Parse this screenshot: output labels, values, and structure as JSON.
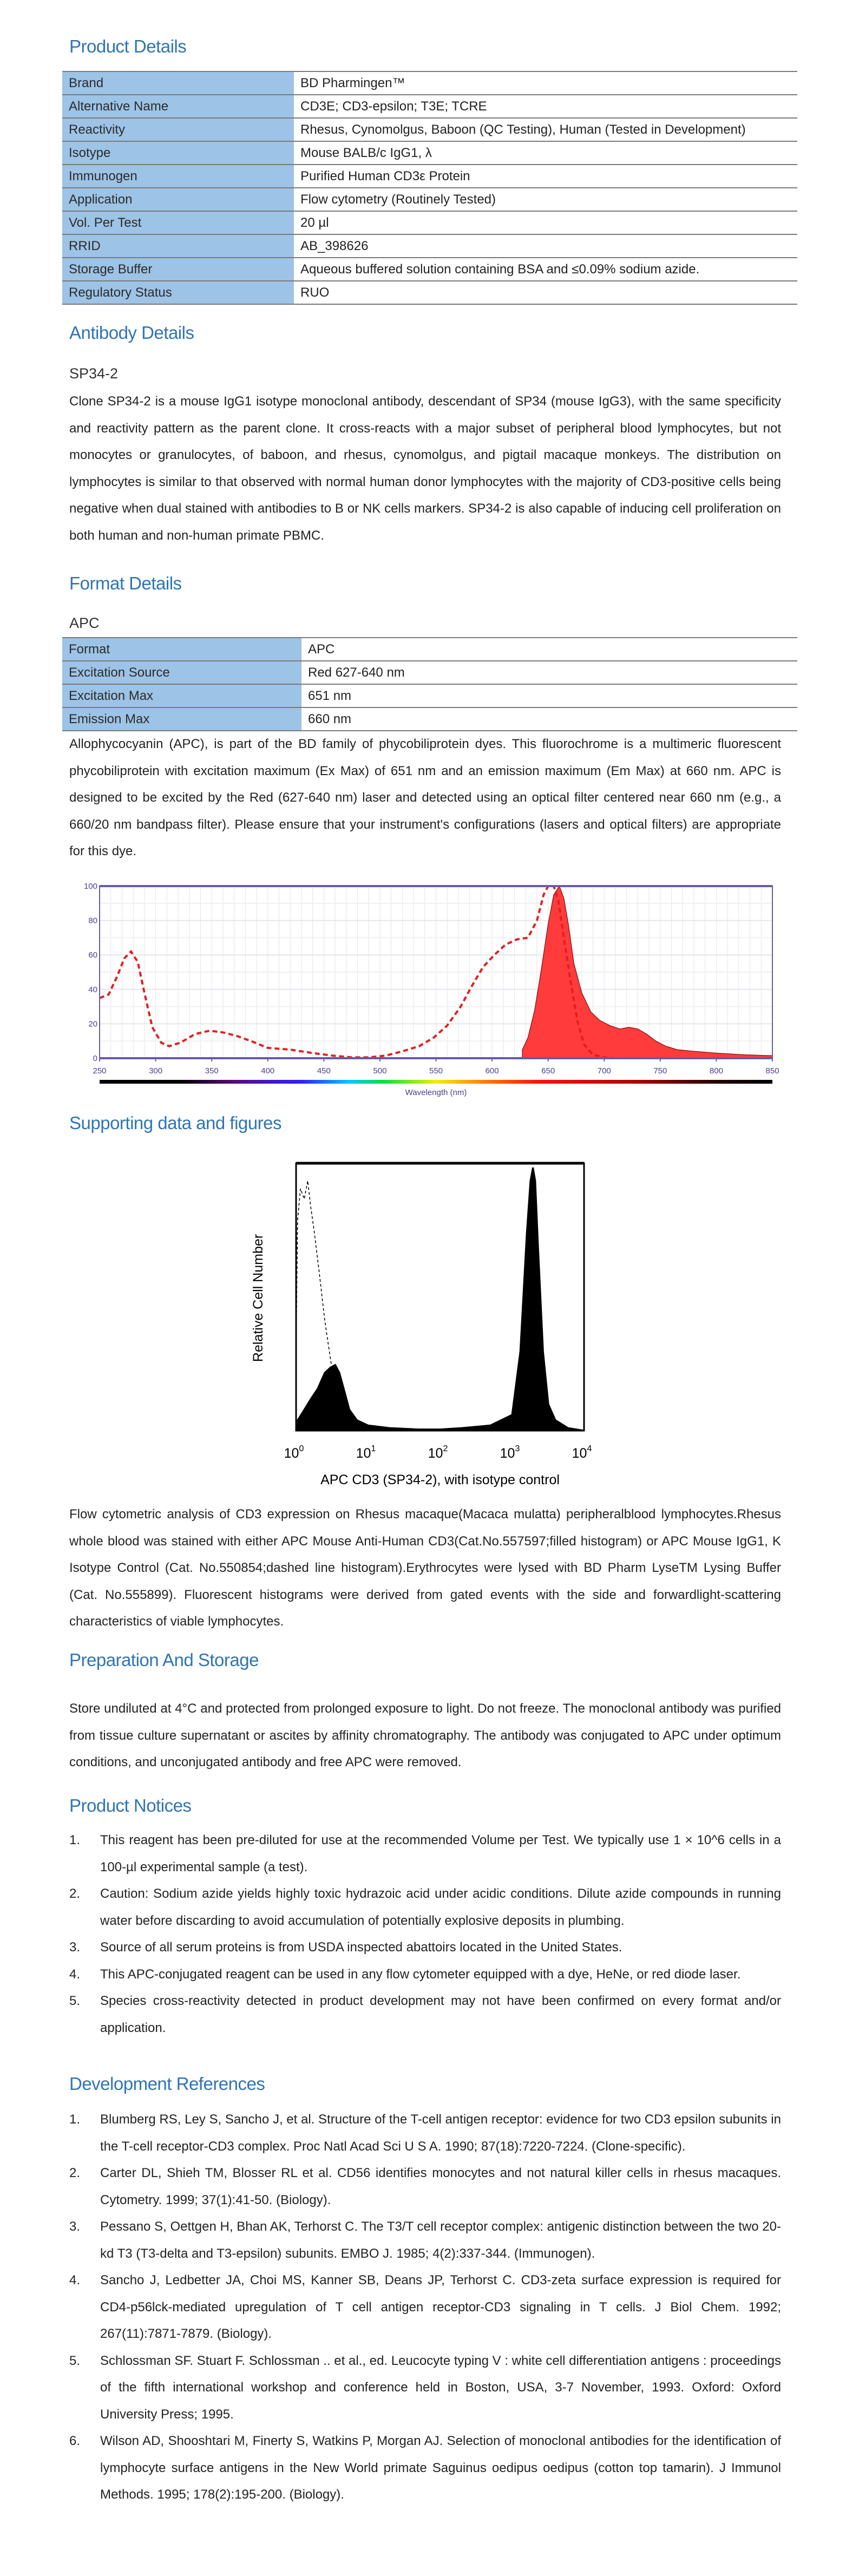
{
  "product_details": {
    "title": "Product Details",
    "rows": [
      {
        "label": "Brand",
        "value": "BD Pharmingen™"
      },
      {
        "label": "Alternative Name",
        "value": "CD3E; CD3-epsilon; T3E; TCRE"
      },
      {
        "label": "Reactivity",
        "value": "Rhesus, Cynomolgus, Baboon (QC Testing), Human (Tested in Development)"
      },
      {
        "label": "Isotype",
        "value": "Mouse BALB/c IgG1, λ"
      },
      {
        "label": "Immunogen",
        "value": "Purified Human CD3ε Protein"
      },
      {
        "label": "Application",
        "value": "Flow cytometry (Routinely Tested)"
      },
      {
        "label": "Vol. Per Test",
        "value": "20 µl"
      },
      {
        "label": "RRID",
        "value": "AB_398626"
      },
      {
        "label": "Storage Buffer",
        "value": "Aqueous buffered solution containing BSA and ≤0.09% sodium azide."
      },
      {
        "label": "Regulatory Status",
        "value": "RUO"
      }
    ]
  },
  "antibody_details": {
    "title": "Antibody Details",
    "clone": "SP34-2",
    "text": "Clone SP34-2 is a mouse IgG1 isotype monoclonal antibody, descendant of SP34 (mouse IgG3), with the same specificity and reactivity pattern as the parent clone. It cross-reacts with a major subset of peripheral blood lymphocytes, but not monocytes or granulocytes, of baboon, and rhesus, cynomolgus, and pigtail macaque monkeys. The distribution on lymphocytes is similar to that observed with normal human donor lymphocytes with the majority of CD3-positive cells being negative when dual stained with antibodies to B or NK cells markers. SP34-2 is also capable of inducing cell proliferation on both human and non-human primate PBMC."
  },
  "format_details": {
    "title": "Format Details",
    "format_name": "APC",
    "rows": [
      {
        "label": "Format",
        "value": "APC"
      },
      {
        "label": "Excitation Source",
        "value": "Red 627-640 nm"
      },
      {
        "label": "Excitation Max",
        "value": "651 nm"
      },
      {
        "label": "Emission Max",
        "value": "660 nm"
      }
    ],
    "text": "Allophycocyanin (APC), is part of the BD family of phycobiliprotein dyes. This fluorochrome is a multimeric fluorescent phycobiliprotein with excitation maximum (Ex Max) of 651 nm and an emission maximum (Em Max) at 660 nm. APC is designed to be excited by the Red (627-640 nm) laser and detected using an optical filter centered near 660 nm (e.g., a 660/20 nm bandpass filter). Please ensure that your instrument's configurations (lasers and optical filters) are appropriate for this dye."
  },
  "chart_data": [
    {
      "type": "area",
      "xlabel": "Wavelength (nm)",
      "ylabel": "",
      "xlim": [
        250,
        850
      ],
      "ylim": [
        0,
        100
      ],
      "x_ticks": [
        "250",
        "300",
        "350",
        "400",
        "450",
        "500",
        "550",
        "600",
        "650",
        "700",
        "750",
        "800",
        "850"
      ],
      "y_ticks": [
        "0",
        "20",
        "40",
        "60",
        "80",
        "100"
      ],
      "grid": true,
      "colors": {
        "excitation": "#e02020",
        "emission_fill": "#ff3b3b",
        "axis": "#6a5aa6"
      },
      "series": [
        {
          "style": "dashed-line",
          "points": [
            [
              250,
              35
            ],
            [
              258,
              37
            ],
            [
              266,
              48
            ],
            [
              272,
              58
            ],
            [
              278,
              62
            ],
            [
              284,
              56
            ],
            [
              290,
              38
            ],
            [
              297,
              18
            ],
            [
              305,
              9
            ],
            [
              312,
              7
            ],
            [
              322,
              9
            ],
            [
              335,
              14
            ],
            [
              348,
              16
            ],
            [
              360,
              15
            ],
            [
              372,
              13
            ],
            [
              385,
              10
            ],
            [
              400,
              6
            ],
            [
              420,
              5
            ],
            [
              440,
              3
            ],
            [
              458,
              1.5
            ],
            [
              475,
              0.5
            ],
            [
              490,
              0.5
            ],
            [
              505,
              1.5
            ],
            [
              520,
              4
            ],
            [
              535,
              7
            ],
            [
              548,
              12
            ],
            [
              560,
              19
            ],
            [
              572,
              30
            ],
            [
              582,
              42
            ],
            [
              592,
              53
            ],
            [
              602,
              60
            ],
            [
              612,
              66
            ],
            [
              622,
              69
            ],
            [
              632,
              70
            ],
            [
              640,
              80
            ],
            [
              646,
              95
            ],
            [
              650,
              100
            ],
            [
              655,
              100
            ],
            [
              659,
              92
            ],
            [
              664,
              70
            ],
            [
              670,
              45
            ],
            [
              676,
              22
            ],
            [
              682,
              8
            ],
            [
              690,
              2
            ],
            [
              700,
              0.5
            ],
            [
              710,
              0
            ]
          ]
        },
        {
          "style": "filled-area",
          "points": [
            [
              627,
              5
            ],
            [
              632,
              12
            ],
            [
              638,
              28
            ],
            [
              644,
              52
            ],
            [
              650,
              78
            ],
            [
              655,
              95
            ],
            [
              660,
              100
            ],
            [
              664,
              93
            ],
            [
              668,
              78
            ],
            [
              673,
              55
            ],
            [
              680,
              38
            ],
            [
              688,
              27
            ],
            [
              696,
              22
            ],
            [
              705,
              19
            ],
            [
              714,
              17
            ],
            [
              722,
              18
            ],
            [
              730,
              17
            ],
            [
              738,
              14
            ],
            [
              746,
              10
            ],
            [
              755,
              7
            ],
            [
              765,
              5
            ],
            [
              780,
              4
            ],
            [
              800,
              3
            ],
            [
              825,
              2
            ],
            [
              850,
              1.5
            ]
          ]
        }
      ]
    },
    {
      "type": "area",
      "xlabel": "APC CD3 (SP34-2), with isotype control",
      "ylabel": "Relative Cell Number",
      "x_scale": "log",
      "xlim": [
        1,
        10000
      ],
      "x_ticks": [
        {
          "base": "10",
          "exp": "0"
        },
        {
          "base": "10",
          "exp": "1"
        },
        {
          "base": "10",
          "exp": "2"
        },
        {
          "base": "10",
          "exp": "3"
        },
        {
          "base": "10",
          "exp": "4"
        }
      ],
      "series": [
        {
          "style": "dashed-line",
          "points": [
            [
              1,
              30
            ],
            [
              1.05,
              80
            ],
            [
              1.15,
              92
            ],
            [
              1.3,
              88
            ],
            [
              1.45,
              95
            ],
            [
              1.6,
              85
            ],
            [
              1.8,
              75
            ],
            [
              2.1,
              60
            ],
            [
              2.5,
              42
            ],
            [
              2.9,
              30
            ],
            [
              3.3,
              20
            ],
            [
              3.7,
              12
            ],
            [
              4.2,
              8
            ],
            [
              5,
              5
            ],
            [
              6,
              3
            ],
            [
              8,
              1
            ],
            [
              10,
              0
            ]
          ]
        },
        {
          "style": "filled-area",
          "points": [
            [
              1,
              3
            ],
            [
              1.3,
              8
            ],
            [
              1.6,
              12
            ],
            [
              2,
              16
            ],
            [
              2.5,
              22
            ],
            [
              3,
              24
            ],
            [
              3.5,
              25
            ],
            [
              4,
              22
            ],
            [
              4.7,
              15
            ],
            [
              5.5,
              8
            ],
            [
              7,
              4
            ],
            [
              10,
              2
            ],
            [
              20,
              1
            ],
            [
              50,
              0.5
            ],
            [
              100,
              0.5
            ],
            [
              200,
              1
            ],
            [
              500,
              2
            ],
            [
              1000,
              6
            ],
            [
              1300,
              30
            ],
            [
              1600,
              75
            ],
            [
              1800,
              95
            ],
            [
              1950,
              100
            ],
            [
              2100,
              95
            ],
            [
              2300,
              70
            ],
            [
              2700,
              30
            ],
            [
              3200,
              10
            ],
            [
              4000,
              4
            ],
            [
              6000,
              1
            ],
            [
              10000,
              0
            ]
          ]
        }
      ]
    }
  ],
  "supporting": {
    "title": "Supporting data and figures",
    "caption": "Flow cytometric analysis of CD3 expression on Rhesus macaque(Macaca mulatta) peripheralblood lymphocytes.Rhesus whole blood was stained with either APC Mouse Anti-Human CD3(Cat.No.557597;filled histogram) or APC Mouse IgG1, K Isotype Control (Cat. No.550854;dashed line histogram).Erythrocytes were lysed with BD Pharm LyseTM Lysing Buffer (Cat. No.555899). Fluorescent histograms were derived from gated events with the side and forwardlight-scattering characteristics of viable lymphocytes."
  },
  "preparation": {
    "title": "Preparation And Storage",
    "text": "Store undiluted at 4°C and protected from prolonged exposure to light. Do not freeze. The monoclonal antibody was purified from tissue culture supernatant or ascites by affinity chromatography. The antibody was conjugated to APC under optimum conditions, and unconjugated antibody and free APC were removed."
  },
  "notices": {
    "title": "Product Notices",
    "items": [
      {
        "num": "1.",
        "text": "This reagent has been pre-diluted for use at the recommended Volume per Test. We typically use 1 × 10^6 cells in a 100-µl experimental sample (a test)."
      },
      {
        "num": "2.",
        "text": "Caution: Sodium azide yields highly toxic hydrazoic acid under acidic conditions. Dilute azide compounds in running water before discarding to avoid accumulation of potentially explosive deposits in plumbing."
      },
      {
        "num": "3.",
        "text": "Source of all serum proteins is from USDA inspected abattoirs located in the United States."
      },
      {
        "num": "4.",
        "text": "This APC-conjugated reagent can be used in any flow cytometer equipped with a dye, HeNe, or red diode laser."
      },
      {
        "num": "5.",
        "text": "Species cross-reactivity detected in product development may not have been confirmed on every format and/or application."
      }
    ]
  },
  "references": {
    "title": "Development References",
    "items": [
      {
        "num": "1.",
        "text": "Blumberg RS, Ley S, Sancho J, et al. Structure of the T-cell antigen receptor: evidence for two CD3 epsilon subunits in the T-cell receptor-CD3 complex. Proc Natl Acad Sci U S A. 1990; 87(18):7220-7224. (Clone-specific)."
      },
      {
        "num": "2.",
        "text": "Carter DL, Shieh TM, Blosser RL et al. CD56 identifies monocytes and not natural killer cells in rhesus macaques. Cytometry. 1999; 37(1):41-50. (Biology)."
      },
      {
        "num": "3.",
        "text": "Pessano S, Oettgen H, Bhan AK, Terhorst C. The T3/T cell receptor complex: antigenic distinction between the two 20-kd T3 (T3-delta and T3-epsilon) subunits. EMBO J. 1985; 4(2):337-344. (Immunogen)."
      },
      {
        "num": "4.",
        "text": "Sancho J, Ledbetter JA, Choi MS, Kanner SB, Deans JP, Terhorst C. CD3-zeta surface expression is required for CD4-p56lck-mediated upregulation of T cell antigen receptor-CD3 signaling in T cells. J Biol Chem. 1992; 267(11):7871-7879. (Biology)."
      },
      {
        "num": "5.",
        "text": "Schlossman SF. Stuart F. Schlossman .. et al., ed. Leucocyte typing V : white cell differentiation antigens : proceedings of the fifth international workshop and conference held in Boston, USA, 3-7 November, 1993. Oxford: Oxford University Press; 1995."
      },
      {
        "num": "6.",
        "text": "Wilson AD, Shooshtari M, Finerty S, Watkins P, Morgan AJ. Selection of monoclonal antibodies for the identification of lymphocyte surface antigens in the New World primate Saguinus oedipus oedipus (cotton top tamarin). J Immunol Methods. 1995; 178(2):195-200. (Biology)."
      }
    ]
  }
}
